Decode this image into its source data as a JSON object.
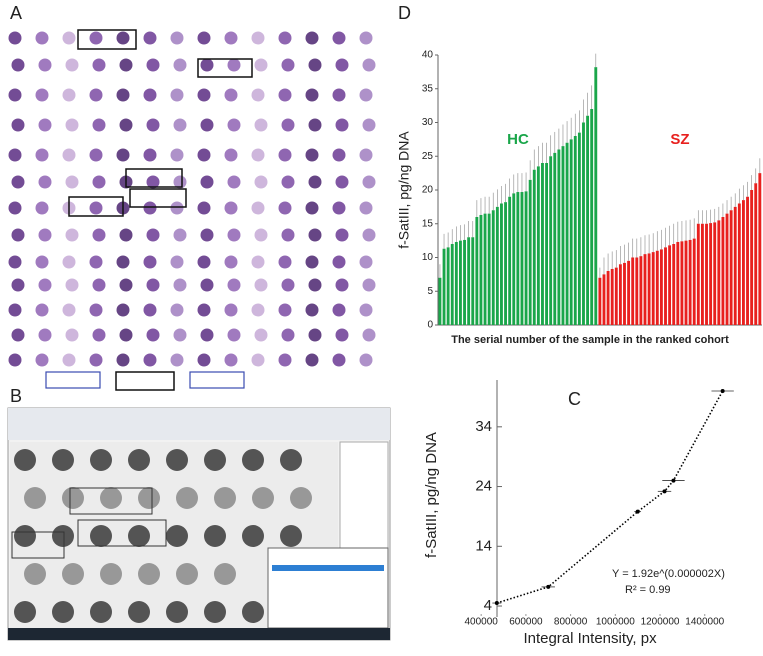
{
  "figure": {
    "panel_labels": [
      "A",
      "B"
    ]
  },
  "chart_data": [
    {
      "type": "bar",
      "panel_label": "D",
      "ylabel": "f-SatIII, pg/ng DNA",
      "xlabel": "The serial number of the sample in the ranked cohort",
      "ylim": [
        0,
        40
      ],
      "yticks": [
        0,
        5,
        10,
        15,
        20,
        25,
        30,
        35,
        40
      ],
      "series": [
        {
          "name": "HC",
          "color": "#1aa64a",
          "values": [
            7,
            11.3,
            11.5,
            12,
            12.3,
            12.5,
            12.6,
            13,
            13,
            16,
            16.3,
            16.5,
            16.5,
            17,
            17.5,
            18,
            18.2,
            19,
            19.5,
            19.7,
            19.7,
            19.8,
            21.5,
            23,
            23.5,
            24,
            24,
            25,
            25.5,
            26,
            26.5,
            27,
            27.5,
            28,
            28.5,
            30,
            31,
            32,
            38.2
          ],
          "errors": [
            2,
            2.2,
            2.2,
            2.2,
            2.3,
            2.3,
            2.3,
            2.4,
            2.4,
            2.5,
            2.5,
            2.5,
            2.5,
            2.6,
            2.6,
            2.6,
            2.7,
            2.7,
            2.8,
            2.8,
            2.8,
            2.8,
            2.9,
            3,
            3,
            3,
            3,
            3.1,
            3.1,
            3.1,
            3.2,
            3.2,
            3.2,
            3.3,
            3.3,
            3.4,
            3.4,
            3.5,
            2
          ]
        },
        {
          "name": "SZ",
          "color": "#e8201e",
          "values": [
            7,
            7.5,
            8,
            8.3,
            8.5,
            9,
            9.2,
            9.5,
            10,
            10,
            10.2,
            10.5,
            10.6,
            10.8,
            11,
            11.2,
            11.5,
            11.8,
            12,
            12.3,
            12.4,
            12.5,
            12.6,
            12.8,
            15,
            15,
            15,
            15.1,
            15.2,
            15.5,
            16,
            16.5,
            17,
            17.5,
            18,
            18.5,
            19,
            20,
            21,
            22.5
          ],
          "errors": [
            1.5,
            2.5,
            2.6,
            2.6,
            2.6,
            2.7,
            2.7,
            2.7,
            2.8,
            2.8,
            2.8,
            2.8,
            2.8,
            2.8,
            2.9,
            2.9,
            2.9,
            2.9,
            3,
            3,
            3,
            3,
            3,
            3,
            2,
            2,
            2,
            2,
            2,
            2,
            2,
            2,
            2,
            2,
            2.2,
            2.2,
            2.2,
            2.2,
            2.2,
            2.2
          ]
        }
      ]
    },
    {
      "type": "scatter",
      "panel_label": "C",
      "ylabel": "f-SatIII, pg/ng DNA",
      "xlabel": "Integral Intensity, px",
      "xlim": [
        350000,
        1580000
      ],
      "xticks": [
        400000,
        600000,
        800000,
        1000000,
        1200000,
        1400000
      ],
      "ylim": [
        3,
        41
      ],
      "yticks": [
        4,
        14,
        24,
        34
      ],
      "color": "#000000",
      "x": [
        470000,
        700000,
        1100000,
        1220000,
        1260000,
        1480000
      ],
      "values": [
        4.5,
        7.2,
        19.8,
        23.2,
        25,
        40
      ],
      "xerr": [
        20000,
        30000,
        15000,
        30000,
        50000,
        50000
      ],
      "annotations": [
        "Y = 1.92e^(0.000002X)",
        "R² = 0.99"
      ]
    }
  ]
}
